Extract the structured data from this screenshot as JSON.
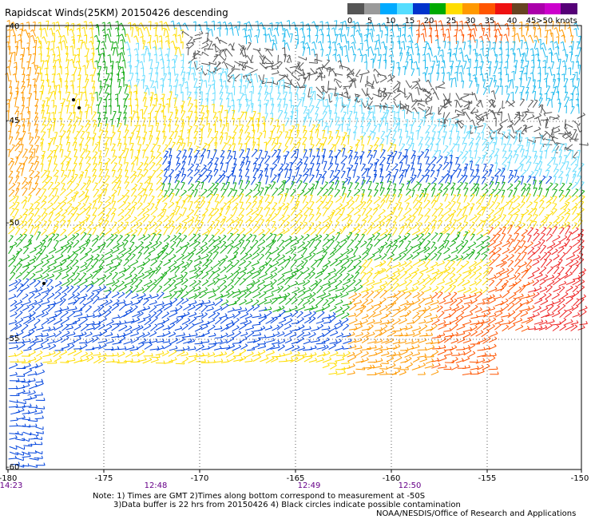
{
  "title": "Rapidscat Winds(25KM) 20150426 descending",
  "legend": {
    "colors": [
      "#555555",
      "#9a9a9a",
      "#00aaff",
      "#55ddff",
      "#0033cc",
      "#00aa00",
      "#ffdd00",
      "#ff9900",
      "#ff5500",
      "#ee1111",
      "#664422",
      "#aa00aa",
      "#cc00cc",
      "#550077"
    ],
    "labels": [
      "0",
      "5",
      "10",
      "15",
      "20",
      "25",
      "30",
      "35",
      "40",
      "45",
      ">50 knots"
    ]
  },
  "axes": {
    "lat_labels": [
      "-40",
      "-45",
      "-50",
      "-55",
      "-60"
    ],
    "lon_labels": [
      "-180",
      "-175",
      "-170",
      "-165",
      "-160",
      "-155",
      "-150"
    ]
  },
  "time_labels": [
    "14:23",
    "12:48",
    "12:49",
    "12:50"
  ],
  "notes": {
    "line1": "Note: 1) Times are GMT 2)Times along bottom correspond to measurement at -50S",
    "line2": "3)Data buffer is 22 hrs from 20150426 4) Black circles indicate possible contamination",
    "credit": "NOAA/NESDIS/Office of Research and Applications"
  }
}
